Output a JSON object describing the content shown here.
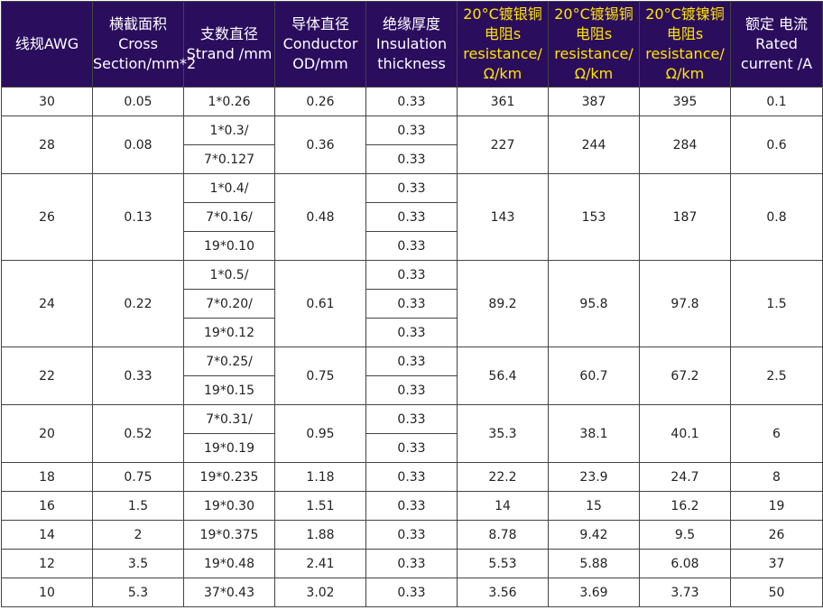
{
  "headers": {
    "awg": "线规AWG",
    "section": "横截面积 Cross Section/mm*2",
    "strand": "支数直径 Strand /mm",
    "conductor": "导体直径 Conductor OD/mm",
    "insulation": "绝缘厚度 Insulation thickness",
    "silver": "20°C镀银铜电阻s resistance/Ω/km",
    "tin": "20°C镀锡铜电阻s resistance/Ω/km",
    "nickel": "20°C镀镍铜电阻s resistance/Ω/km",
    "current": "额定 电流 Rated current /A"
  },
  "rows": {
    "r30": {
      "awg": "30",
      "section": "0.05",
      "strand": [
        "1*0.26"
      ],
      "conductor": "0.26",
      "insulation": [
        "0.33"
      ],
      "silver": "361",
      "tin": "387",
      "nickel": "395",
      "current": "0.1"
    },
    "r28": {
      "awg": "28",
      "section": "0.08",
      "strand": [
        "1*0.3/",
        "7*0.127"
      ],
      "conductor": "0.36",
      "insulation": [
        "0.33",
        "0.33"
      ],
      "silver": "227",
      "tin": "244",
      "nickel": "284",
      "current": "0.6"
    },
    "r26": {
      "awg": "26",
      "section": "0.13",
      "strand": [
        "1*0.4/",
        "7*0.16/",
        "19*0.10"
      ],
      "conductor": "0.48",
      "insulation": [
        "0.33",
        "0.33",
        "0.33"
      ],
      "silver": "143",
      "tin": "153",
      "nickel": "187",
      "current": "0.8"
    },
    "r24": {
      "awg": "24",
      "section": "0.22",
      "strand": [
        "1*0.5/",
        "7*0.20/",
        "19*0.12"
      ],
      "conductor": "0.61",
      "insulation": [
        "0.33",
        "0.33",
        "0.33"
      ],
      "silver": "89.2",
      "tin": "95.8",
      "nickel": "97.8",
      "current": "1.5"
    },
    "r22": {
      "awg": "22",
      "section": "0.33",
      "strand": [
        "7*0.25/",
        "19*0.15"
      ],
      "conductor": "0.75",
      "insulation": [
        "0.33",
        "0.33"
      ],
      "silver": "56.4",
      "tin": "60.7",
      "nickel": "67.2",
      "current": "2.5"
    },
    "r20": {
      "awg": "20",
      "section": "0.52",
      "strand": [
        "7*0.31/",
        "19*0.19"
      ],
      "conductor": "0.95",
      "insulation": [
        "0.33",
        "0.33"
      ],
      "silver": "35.3",
      "tin": "38.1",
      "nickel": "40.1",
      "current": "6"
    },
    "r18": {
      "awg": "18",
      "section": "0.75",
      "strand": [
        "19*0.235"
      ],
      "conductor": "1.18",
      "insulation": [
        "0.33"
      ],
      "silver": "22.2",
      "tin": "23.9",
      "nickel": "24.7",
      "current": "8"
    },
    "r16": {
      "awg": "16",
      "section": "1.5",
      "strand": [
        "19*0.30"
      ],
      "conductor": "1.51",
      "insulation": [
        "0.33"
      ],
      "silver": "14",
      "tin": "15",
      "nickel": "16.2",
      "current": "19"
    },
    "r14": {
      "awg": "14",
      "section": "2",
      "strand": [
        "19*0.375"
      ],
      "conductor": "1.88",
      "insulation": [
        "0.33"
      ],
      "silver": "8.78",
      "tin": "9.42",
      "nickel": "9.5",
      "current": "26"
    },
    "r12": {
      "awg": "12",
      "section": "3.5",
      "strand": [
        "19*0.48"
      ],
      "conductor": "2.41",
      "insulation": [
        "0.33"
      ],
      "silver": "5.53",
      "tin": "5.88",
      "nickel": "6.08",
      "current": "37"
    },
    "r10": {
      "awg": "10",
      "section": "5.3",
      "strand": [
        "37*0.43"
      ],
      "conductor": "3.02",
      "insulation": [
        "0.33"
      ],
      "silver": "3.56",
      "tin": "3.69",
      "nickel": "3.73",
      "current": "50"
    }
  }
}
